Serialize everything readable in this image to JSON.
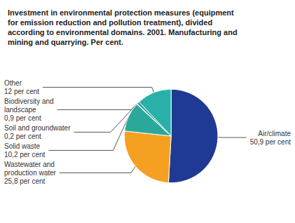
{
  "chart_data": {
    "type": "pie",
    "title": "Investment in environmental protection measures (equipment\nfor emission reduction and pollution treatment), divided\naccording to environmental domains. 2001. Manufacturing and\nmining and quarrying. Per cent.",
    "categories": [
      "Air/climate",
      "Wastewater and\nproduction water",
      "Solid waste",
      "Soil and groundwater",
      "Biodiversity and\nlandscape",
      "Other"
    ],
    "values": [
      50.9,
      25.8,
      10.2,
      0.2,
      0.9,
      12
    ],
    "value_labels": [
      "50,9 per cent",
      "25,8 per cent",
      "10,2 per cent",
      "0,2 per cent",
      "0,9 per cent",
      "12 per cent"
    ],
    "colors": [
      "#1f3a93",
      "#f5a020",
      "#2aa89a",
      "#c87010",
      "#2aa89a",
      "#29b0a8"
    ]
  }
}
